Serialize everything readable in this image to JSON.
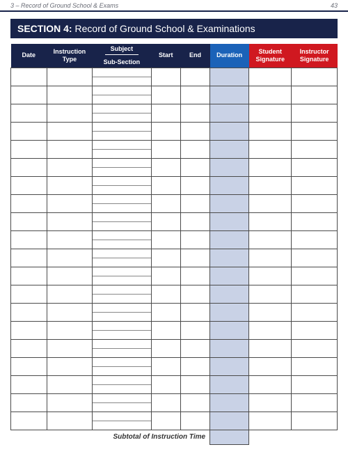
{
  "page": {
    "running_head": "3 – Record of Ground School & Exams",
    "page_number": "43"
  },
  "colors": {
    "navy": "#18234a",
    "accent_blue": "#1b62b8",
    "accent_red": "#d01820",
    "duration_fill": "#c9d2e6",
    "rule": "#4a4a4a"
  },
  "banner": {
    "section_label": "SECTION 4:",
    "section_title": " Record of Ground School & Examinations"
  },
  "table": {
    "headers": {
      "date": "Date",
      "instruction_type_l1": "Instruction",
      "instruction_type_l2": "Type",
      "subject": "Subject",
      "sub_section": "Sub-Section",
      "start": "Start",
      "end": "End",
      "duration": "Duration",
      "student_l1": "Student",
      "student_l2": "Signature",
      "instructor_l1": "Instructor",
      "instructor_l2": "Signature"
    },
    "column_widths_pct": [
      11,
      14,
      18,
      9,
      9,
      12,
      13,
      14
    ],
    "row_count": 20,
    "subtotal_label": "Subtotal of Instruction Time"
  }
}
